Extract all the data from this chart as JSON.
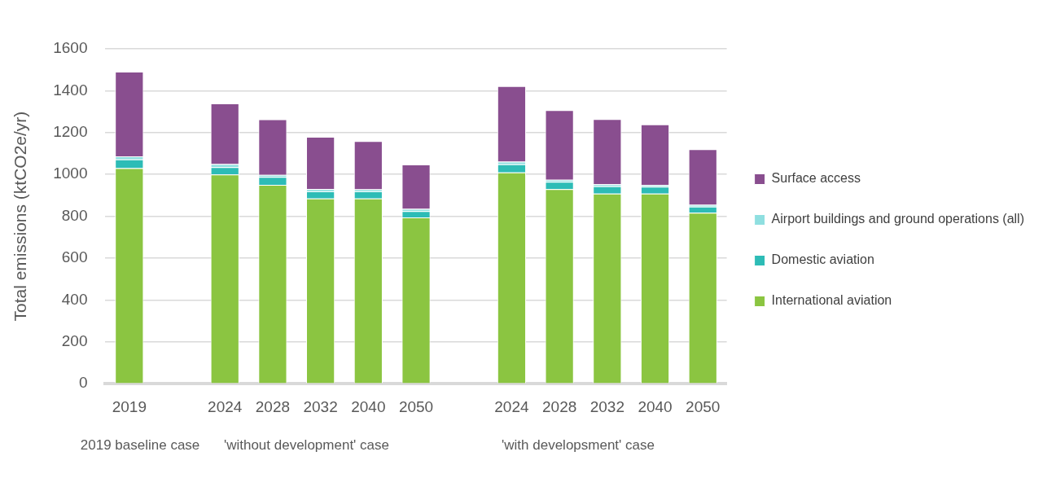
{
  "chart_data": {
    "type": "bar",
    "stacked": true,
    "ylabel": "Total emissions (ktCO2e/yr)",
    "categories": [
      "2019",
      null,
      "2024",
      "2028",
      "2032",
      "2040",
      "2050",
      null,
      "2024",
      "2028",
      "2032",
      "2040",
      "2050"
    ],
    "series": [
      {
        "name": "International aviation",
        "color": "#8bc541",
        "values": [
          1030,
          null,
          1000,
          950,
          885,
          885,
          795,
          null,
          1010,
          930,
          908,
          908,
          817
        ]
      },
      {
        "name": "Domestic aviation",
        "color": "#2dbcb6",
        "values": [
          42,
          null,
          35,
          38,
          34,
          34,
          30,
          null,
          38,
          35,
          35,
          33,
          29
        ]
      },
      {
        "name": "Airport buildings and ground operations (all)",
        "color": "#8fdfe0",
        "values": [
          14,
          null,
          14,
          10,
          11,
          10,
          10,
          null,
          13,
          10,
          10,
          8,
          9
        ]
      },
      {
        "name": "Surface access",
        "color": "#894e8f",
        "values": [
          405,
          null,
          290,
          265,
          250,
          230,
          212,
          null,
          361,
          332,
          311,
          290,
          265
        ]
      }
    ],
    "ylim": [
      0,
      1600
    ],
    "yticks": [
      0,
      200,
      400,
      600,
      800,
      1000,
      1200,
      1400,
      1600
    ],
    "grid": "y",
    "legend": "right",
    "annotations": [
      "2019 baseline case",
      "'without development' case",
      "'with developsment' case"
    ]
  }
}
